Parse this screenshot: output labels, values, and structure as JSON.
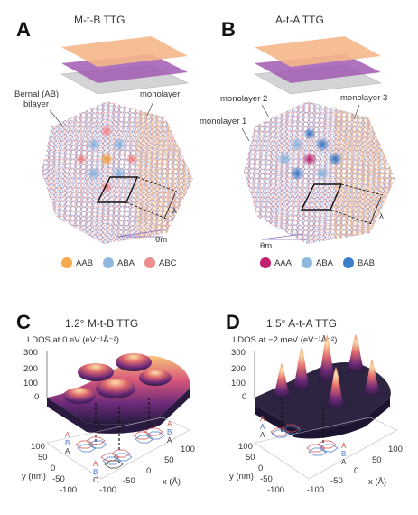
{
  "panels": {
    "A": {
      "letter": "A",
      "title": "M-t-B TTG",
      "label_bernal_1": "Bernal (AB)",
      "label_bernal_2": "bilayer",
      "label_monolayer": "monolayer",
      "lambda": "λ",
      "theta": "θm",
      "legend": [
        {
          "label": "AAB",
          "color": "#f5a94c"
        },
        {
          "label": "ABA",
          "color": "#8fb8e0"
        },
        {
          "label": "ABC",
          "color": "#ee8d8d"
        }
      ]
    },
    "B": {
      "letter": "B",
      "title": "A-t-A TTG",
      "label_mono1": "monolayer 1",
      "label_mono2": "monolayer 2",
      "label_mono3": "monolayer 3",
      "lambda": "λ",
      "theta": "θm",
      "legend": [
        {
          "label": "AAA",
          "color": "#c0206e"
        },
        {
          "label": "ABA",
          "color": "#8fb8e0"
        },
        {
          "label": "BAB",
          "color": "#3a7fc8"
        }
      ]
    },
    "C": {
      "letter": "C",
      "title": "1.2° M-t-B TTG",
      "zlabel": "LDOS at 0 eV (eV⁻¹Å⁻²)",
      "z_ticks": [
        "300",
        "200",
        "100",
        "0"
      ],
      "y_ticks": [
        "100",
        "50",
        "0",
        "-50",
        "-100"
      ],
      "x_ticks": [
        "-100",
        "-50",
        "0",
        "50",
        "100"
      ],
      "ylabel": "y (nm)",
      "xlabel": "x (Å)",
      "stack_labels_left": [
        "A",
        "B",
        "A"
      ],
      "stack_labels_right": [
        "A",
        "B",
        "A"
      ],
      "stack_labels_mid": [
        "A",
        "B",
        "C"
      ]
    },
    "D": {
      "letter": "D",
      "title": "1.5° A-t-A TTG",
      "zlabel": "LDOS at −2 meV (eV⁻¹Å⁻²)",
      "z_ticks": [
        "300",
        "200",
        "100",
        "0"
      ],
      "y_ticks": [
        "100",
        "50",
        "0",
        "-50",
        "-100"
      ],
      "x_ticks": [
        "-100",
        "-50",
        "0",
        "50",
        "100"
      ],
      "ylabel": "y (nm)",
      "xlabel": "x (Å)",
      "stack_labels_left": [
        "A",
        "A",
        "A"
      ],
      "stack_labels_right": [
        "A",
        "B",
        "A"
      ]
    }
  }
}
